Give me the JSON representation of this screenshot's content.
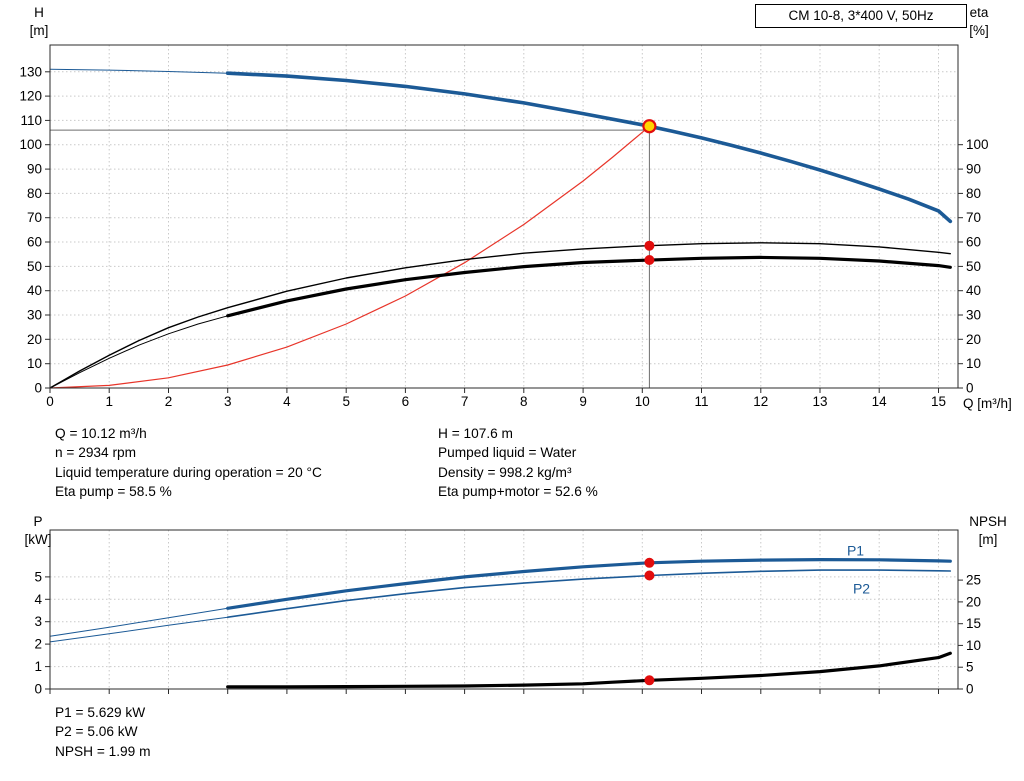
{
  "colors": {
    "curve_blue": "#1c5a96",
    "curve_black": "#000000",
    "system_red": "#e8352a",
    "dot_red": "#e10c0c",
    "duty_fill": "#ffd400",
    "grid": "#c9c9c9",
    "frame": "#2b2b2b",
    "guide": "#6e6e6e",
    "text": "#000000"
  },
  "duty_info": {
    "left": [
      "Q = 10.12 m³/h",
      "n = 2934 rpm",
      "Liquid temperature during operation = 20 °C",
      "Eta pump = 58.5 %"
    ],
    "right": [
      "H = 107.6 m",
      "Pumped liquid = Water",
      "Density = 998.2 kg/m³",
      "Eta pump+motor = 52.6 %"
    ]
  },
  "power_info": [
    "P1 = 5.629 kW",
    "P2 = 5.06 kW",
    "NPSH = 1.99 m"
  ],
  "chart_data": [
    {
      "type": "line",
      "name": "hq-eta-chart",
      "title": "CM 10-8, 3*400 V, 50Hz",
      "x_label": "Q [m³/h]",
      "y_left_label_1": "H",
      "y_left_label_2": "[m]",
      "y_right_label_1": "eta",
      "y_right_label_2": "[%]",
      "x_range": [
        0,
        15.33
      ],
      "y_left_range": [
        0,
        141
      ],
      "y_right_range": [
        0,
        141
      ],
      "x_ticks": [
        0,
        1,
        2,
        3,
        4,
        5,
        6,
        7,
        8,
        9,
        10,
        11,
        12,
        13,
        14,
        15
      ],
      "x_tick_labels": true,
      "y_left_ticks": [
        0,
        10,
        20,
        30,
        40,
        50,
        60,
        70,
        80,
        90,
        100,
        110,
        120,
        130
      ],
      "y_right_ticks": [
        0,
        10,
        20,
        30,
        40,
        50,
        60,
        70,
        80,
        90,
        100
      ],
      "grid": true,
      "legend": "none",
      "series": [
        {
          "name": "system-curve",
          "axis": "left",
          "color": "#e8352a",
          "width": 1.2,
          "x": [
            0,
            1,
            2,
            3,
            4,
            5,
            6,
            7,
            8,
            9,
            9.5,
            10,
            10.12
          ],
          "y": [
            0,
            1.05,
            4.2,
            9.45,
            16.8,
            26.3,
            37.8,
            51.5,
            67.2,
            85.1,
            94.9,
            105.1,
            107.6
          ]
        },
        {
          "name": "eta-pump-curve",
          "axis": "right",
          "color": "#000000",
          "width": 1.4,
          "x": [
            0,
            0.5,
            1,
            1.5,
            2,
            2.5,
            3,
            4,
            5,
            6,
            7,
            8,
            9,
            10,
            11,
            12,
            13,
            14,
            15,
            15.2
          ],
          "y": [
            0,
            7,
            13.5,
            19.5,
            24.8,
            29.2,
            33,
            39.8,
            45.2,
            49.4,
            52.8,
            55.4,
            57.2,
            58.4,
            59.3,
            59.7,
            59.3,
            58.0,
            55.8,
            55.2
          ]
        },
        {
          "name": "eta-pump-motor-curve",
          "axis": "right",
          "color": "#000000",
          "width": 3.2,
          "thin_width": 1,
          "split_x": 3,
          "x": [
            0,
            0.5,
            1,
            1.5,
            2,
            2.5,
            3,
            4,
            5,
            6,
            7,
            8,
            9,
            10,
            11,
            12,
            13,
            14,
            15,
            15.2
          ],
          "y": [
            0,
            6.3,
            12.2,
            17.6,
            22.3,
            26.3,
            29.7,
            35.8,
            40.7,
            44.5,
            47.5,
            49.9,
            51.6,
            52.5,
            53.3,
            53.7,
            53.3,
            52.2,
            50.3,
            49.6
          ]
        },
        {
          "name": "pump-head-curve",
          "axis": "left",
          "color": "#1c5a96",
          "width": 3.6,
          "thin_width": 1,
          "split_x": 3,
          "x": [
            0,
            1,
            2,
            3,
            4,
            5,
            6,
            7,
            8,
            9,
            10,
            10.5,
            11,
            11.5,
            12,
            12.5,
            13,
            13.5,
            14,
            14.5,
            15,
            15.2
          ],
          "y": [
            131,
            130.7,
            130.1,
            129.4,
            128.2,
            126.4,
            124.0,
            120.9,
            117.2,
            112.8,
            108.2,
            105.6,
            102.8,
            99.8,
            96.6,
            93.2,
            89.6,
            85.8,
            81.8,
            77.6,
            72.8,
            68.5
          ]
        }
      ],
      "guides": [
        {
          "type": "v",
          "x": 10.12,
          "y1": 0,
          "y2": 110,
          "axis": "left"
        },
        {
          "type": "h",
          "y": 106,
          "x1": 0,
          "x2": 10.12,
          "axis": "left"
        }
      ],
      "dots": [
        {
          "x": 10.12,
          "y": 58.5,
          "axis": "right"
        },
        {
          "x": 10.12,
          "y": 52.6,
          "axis": "right"
        }
      ],
      "duty_point": {
        "x": 10.12,
        "y": 107.6,
        "axis": "left"
      }
    },
    {
      "type": "line",
      "name": "power-npsh-chart",
      "title": "",
      "x_label": "",
      "y_left_label_1": "P",
      "y_left_label_2": "[kW]",
      "y_right_label_1": "NPSH",
      "y_right_label_2": "[m]",
      "x_range": [
        0,
        15.33
      ],
      "y_left_range": [
        0,
        7.09
      ],
      "y_right_range": [
        0,
        36.5
      ],
      "x_ticks": [
        0,
        1,
        2,
        3,
        4,
        5,
        6,
        7,
        8,
        9,
        10,
        11,
        12,
        13,
        14,
        15
      ],
      "x_tick_labels": false,
      "y_left_ticks": [
        0,
        1,
        2,
        3,
        4,
        5
      ],
      "y_right_ticks": [
        0,
        5,
        10,
        15,
        20,
        25
      ],
      "grid": true,
      "legend": "inline",
      "series": [
        {
          "name": "p1-curve",
          "axis": "left",
          "color": "#1c5a96",
          "width": 3.2,
          "thin_width": 1,
          "split_x": 3,
          "x": [
            0,
            1,
            2,
            3,
            4,
            5,
            6,
            7,
            8,
            9,
            10,
            10.12,
            11,
            12,
            13,
            14,
            15,
            15.2
          ],
          "y": [
            2.35,
            2.75,
            3.18,
            3.6,
            4.0,
            4.38,
            4.7,
            5.0,
            5.24,
            5.45,
            5.61,
            5.629,
            5.7,
            5.75,
            5.77,
            5.76,
            5.71,
            5.7
          ]
        },
        {
          "name": "p2-curve",
          "axis": "left",
          "color": "#1c5a96",
          "width": 1.6,
          "thin_width": 1,
          "split_x": 3,
          "x": [
            0,
            1,
            2,
            3,
            4,
            5,
            6,
            7,
            8,
            9,
            10,
            10.12,
            11,
            12,
            13,
            14,
            15,
            15.2
          ],
          "y": [
            2.1,
            2.46,
            2.84,
            3.2,
            3.58,
            3.94,
            4.25,
            4.52,
            4.72,
            4.9,
            5.04,
            5.06,
            5.16,
            5.25,
            5.3,
            5.3,
            5.27,
            5.26
          ]
        },
        {
          "name": "npsh-curve",
          "axis": "right",
          "color": "#000000",
          "width": 3.2,
          "x": [
            3,
            4,
            5,
            6,
            7,
            8,
            9,
            9.5,
            10.12,
            11,
            12,
            13,
            14,
            15,
            15.2
          ],
          "y": [
            0.5,
            0.5,
            0.55,
            0.62,
            0.7,
            0.9,
            1.2,
            1.55,
            1.99,
            2.45,
            3.1,
            4.0,
            5.3,
            7.2,
            8.2
          ]
        }
      ],
      "labels": [
        {
          "text": "P1",
          "x": 13.6,
          "y": 5.95,
          "axis": "left",
          "color": "#1c5a96"
        },
        {
          "text": "P2",
          "x": 13.7,
          "y": 4.25,
          "axis": "left",
          "color": "#1c5a96"
        }
      ],
      "guides": [],
      "dots": [
        {
          "x": 10.12,
          "y": 5.629,
          "axis": "left"
        },
        {
          "x": 10.12,
          "y": 5.06,
          "axis": "left"
        },
        {
          "x": 10.12,
          "y": 1.99,
          "axis": "right"
        }
      ]
    }
  ]
}
